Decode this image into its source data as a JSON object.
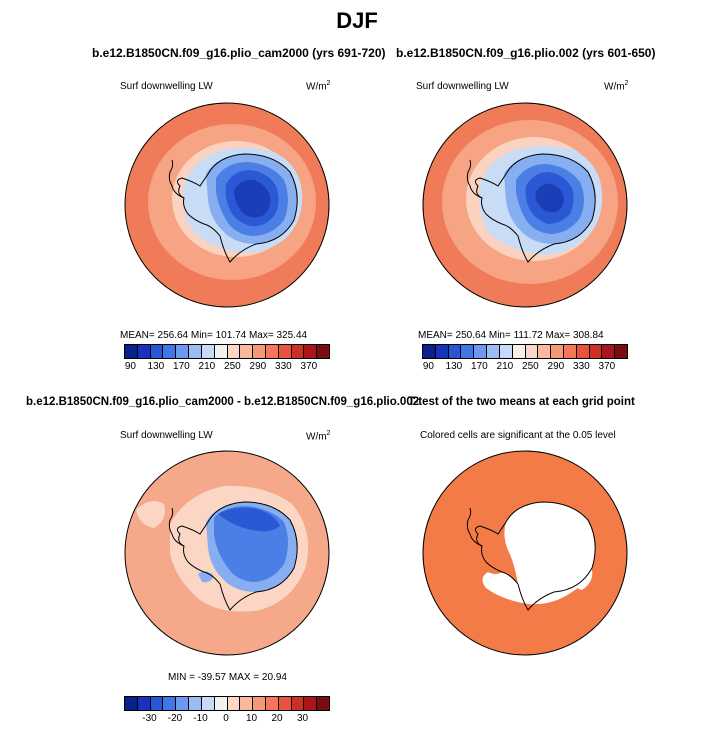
{
  "figure": {
    "title": "DJF"
  },
  "panels": {
    "p1": {
      "title": "b.e12.B1850CN.f09_g16.plio_cam2000 (yrs 691-720)",
      "left_label": "Surf downwelling LW",
      "units_base": "W/m",
      "units_exp": "2",
      "stats": "MEAN= 256.64   Min= 101.74   Max= 325.44"
    },
    "p2": {
      "title": "b.e12.B1850CN.f09_g16.plio.002 (yrs 601-650)",
      "left_label": "Surf downwelling LW",
      "units_base": "W/m",
      "units_exp": "2",
      "stats": "MEAN= 250.64   Min= 111.72   Max= 308.84"
    },
    "p3": {
      "title": "b.e12.B1850CN.f09_g16.plio_cam2000 - b.e12.B1850CN.f09_g16.plio.002",
      "left_label": "Surf downwelling LW",
      "units_base": "W/m",
      "units_exp": "2",
      "stats": "MIN = -39.57  MAX =  20.94"
    },
    "p4": {
      "title": "T-test of the two means at each grid point",
      "left_label": "Colored cells are significant at the 0.05 level"
    }
  },
  "colorbar_abs": {
    "colors": [
      "#0c1f8f",
      "#1734b8",
      "#2a55d6",
      "#4275e6",
      "#6d98ef",
      "#9bbcf4",
      "#c7daf8",
      "#f4f0ec",
      "#fad8c5",
      "#f9b99d",
      "#f79978",
      "#f3775a",
      "#e9533d",
      "#cf2e24",
      "#a8151a",
      "#7a0d12"
    ],
    "ticks": [
      "90",
      "130",
      "170",
      "210",
      "250",
      "290",
      "330",
      "370"
    ]
  },
  "colorbar_diff": {
    "colors": [
      "#0c1f8f",
      "#1734b8",
      "#2a55d6",
      "#4275e6",
      "#6d98ef",
      "#9bbcf4",
      "#c7daf8",
      "#f4f0ec",
      "#fad8c5",
      "#f9b99d",
      "#f79978",
      "#f3775a",
      "#e9533d",
      "#cf2e24",
      "#a8151a",
      "#7a0d12"
    ],
    "ticks": [
      "-30",
      "-20",
      "-10",
      "0",
      "10",
      "20",
      "30"
    ]
  },
  "map_colors": {
    "ocean_far": "#f07b58",
    "ocean_mid": "#f6a483",
    "ocean_near": "#fbd2bf",
    "ice_edge": "#c9dcf6",
    "ant_outer": "#87aef0",
    "ant_mid": "#4c7fe6",
    "ant_inner": "#2b58d4",
    "ant_core": "#1b3db8",
    "diff_bg": "#f6a98a",
    "diff_light": "#fbd6c4",
    "ttest_fill": "#f37b47"
  }
}
